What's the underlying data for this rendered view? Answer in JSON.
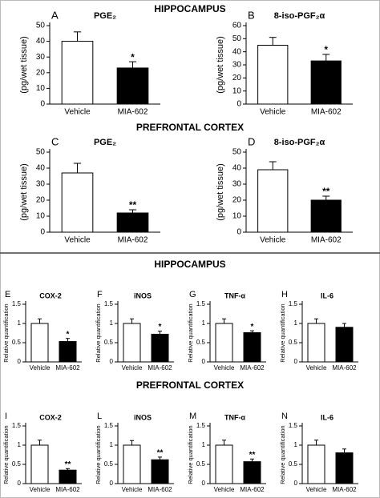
{
  "headings": [
    "HIPPOCAMPUS",
    "PREFRONTAL CORTEX",
    "HIPPOCAMPUS",
    "PREFRONTAL CORTEX"
  ],
  "chart_data": [
    {
      "type": "bar",
      "panel": "A",
      "title": "PGE₂",
      "ylabel": "(pg/wet tissue)",
      "categories": [
        "Vehicle",
        "MIA-602"
      ],
      "values": [
        40,
        23
      ],
      "errors": [
        6,
        4
      ],
      "annotation": "*",
      "colors": [
        "#ffffff",
        "#000000"
      ],
      "ylim": [
        0,
        50
      ],
      "yticks": [
        0,
        10,
        20,
        30,
        40,
        50
      ]
    },
    {
      "type": "bar",
      "panel": "B",
      "title": "8-iso-PGF₂α",
      "ylabel": "(pg/wet tissue)",
      "categories": [
        "Vehicle",
        "MIA-602"
      ],
      "values": [
        45,
        33
      ],
      "errors": [
        6,
        5
      ],
      "annotation": "*",
      "colors": [
        "#ffffff",
        "#000000"
      ],
      "ylim": [
        0,
        60
      ],
      "yticks": [
        0,
        10,
        20,
        30,
        40,
        50,
        60
      ]
    },
    {
      "type": "bar",
      "panel": "C",
      "title": "PGE₂",
      "ylabel": "(pg/wet tissue)",
      "categories": [
        "Vehicle",
        "MIA-602"
      ],
      "values": [
        37,
        12
      ],
      "errors": [
        6,
        2
      ],
      "annotation": "**",
      "colors": [
        "#ffffff",
        "#000000"
      ],
      "ylim": [
        0,
        50
      ],
      "yticks": [
        0,
        10,
        20,
        30,
        40,
        50
      ]
    },
    {
      "type": "bar",
      "panel": "D",
      "title": "8-iso-PGF₂α",
      "ylabel": "(pg/wet tissue)",
      "categories": [
        "Vehicle",
        "MIA-602"
      ],
      "values": [
        39,
        20
      ],
      "errors": [
        5,
        2.5
      ],
      "annotation": "**",
      "colors": [
        "#ffffff",
        "#000000"
      ],
      "ylim": [
        0,
        50
      ],
      "yticks": [
        0,
        10,
        20,
        30,
        40,
        50
      ]
    },
    {
      "type": "bar",
      "panel": "E",
      "title": "COX-2",
      "ylabel": "Relative quantification",
      "categories": [
        "Vehicle",
        "MIA-602"
      ],
      "values": [
        1.0,
        0.53
      ],
      "errors": [
        0.12,
        0.08
      ],
      "annotation": "*",
      "colors": [
        "#ffffff",
        "#000000"
      ],
      "ylim": [
        0,
        1.5
      ],
      "yticks": [
        0,
        0.5,
        1,
        1.5
      ]
    },
    {
      "type": "bar",
      "panel": "F",
      "title": "iNOS",
      "ylabel": "Relative quantification",
      "categories": [
        "Vehicle",
        "MIA-602"
      ],
      "values": [
        1.0,
        0.72
      ],
      "errors": [
        0.12,
        0.08
      ],
      "annotation": "*",
      "colors": [
        "#ffffff",
        "#000000"
      ],
      "ylim": [
        0,
        1.5
      ],
      "yticks": [
        0,
        0.5,
        1,
        1.5
      ]
    },
    {
      "type": "bar",
      "panel": "G",
      "title": "TNF-α",
      "ylabel": "Relative quantification",
      "categories": [
        "Vehicle",
        "MIA-602"
      ],
      "values": [
        1.0,
        0.76
      ],
      "errors": [
        0.12,
        0.05
      ],
      "annotation": "*",
      "colors": [
        "#ffffff",
        "#000000"
      ],
      "ylim": [
        0,
        1.5
      ],
      "yticks": [
        0,
        0.5,
        1,
        1.5
      ]
    },
    {
      "type": "bar",
      "panel": "H",
      "title": "IL-6",
      "ylabel": "Relative quantification",
      "categories": [
        "Vehicle",
        "MIA-602"
      ],
      "values": [
        1.0,
        0.9
      ],
      "errors": [
        0.12,
        0.1
      ],
      "colors": [
        "#ffffff",
        "#000000"
      ],
      "ylim": [
        0,
        1.5
      ],
      "yticks": [
        0,
        0.5,
        1,
        1.5
      ]
    },
    {
      "type": "bar",
      "panel": "I",
      "title": "COX-2",
      "ylabel": "Relative quantification",
      "categories": [
        "Vehicle",
        "MIA-602"
      ],
      "values": [
        1.0,
        0.35
      ],
      "errors": [
        0.13,
        0.04
      ],
      "annotation": "**",
      "colors": [
        "#ffffff",
        "#000000"
      ],
      "ylim": [
        0,
        1.5
      ],
      "yticks": [
        0,
        0.5,
        1,
        1.5
      ]
    },
    {
      "type": "bar",
      "panel": "L",
      "title": "iNOS",
      "ylabel": "Relative quantification",
      "categories": [
        "Vehicle",
        "MIA-602"
      ],
      "values": [
        1.0,
        0.62
      ],
      "errors": [
        0.12,
        0.07
      ],
      "annotation": "**",
      "colors": [
        "#ffffff",
        "#000000"
      ],
      "ylim": [
        0,
        1.5
      ],
      "yticks": [
        0,
        0.5,
        1,
        1.5
      ]
    },
    {
      "type": "bar",
      "panel": "M",
      "title": "TNF-α",
      "ylabel": "Relative quantification",
      "categories": [
        "Vehicle",
        "MIA-602"
      ],
      "values": [
        1.0,
        0.57
      ],
      "errors": [
        0.13,
        0.07
      ],
      "annotation": "**",
      "colors": [
        "#ffffff",
        "#000000"
      ],
      "ylim": [
        0,
        1.5
      ],
      "yticks": [
        0,
        0.5,
        1,
        1.5
      ]
    },
    {
      "type": "bar",
      "panel": "N",
      "title": "IL-6",
      "ylabel": "Relative quantification",
      "categories": [
        "Vehicle",
        "MIA-602"
      ],
      "values": [
        1.0,
        0.8
      ],
      "errors": [
        0.13,
        0.1
      ],
      "colors": [
        "#ffffff",
        "#000000"
      ],
      "ylim": [
        0,
        1.5
      ],
      "yticks": [
        0,
        0.5,
        1,
        1.5
      ]
    }
  ]
}
